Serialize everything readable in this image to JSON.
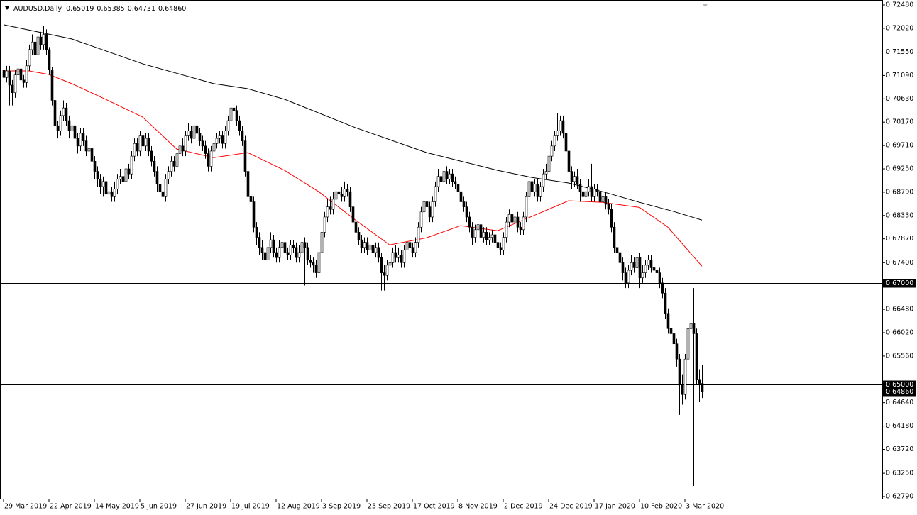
{
  "chart_data": {
    "type": "candlestick",
    "title": "AUDUSD,Daily",
    "header_ohlc": [
      "0.65019",
      "0.65385",
      "0.64731",
      "0.64860"
    ],
    "categories": [
      "29 Mar 2019",
      null,
      null,
      null,
      null,
      null,
      null,
      null,
      null,
      null,
      null,
      null,
      null,
      null,
      null,
      null,
      "22 Apr 2019",
      null,
      null,
      null,
      null,
      null,
      null,
      null,
      null,
      null,
      null,
      null,
      null,
      null,
      null,
      null,
      "14 May 2019",
      null,
      null,
      null,
      null,
      null,
      null,
      null,
      null,
      null,
      null,
      null,
      null,
      null,
      null,
      null,
      "5 Jun 2019",
      null,
      null,
      null,
      null,
      null,
      null,
      null,
      null,
      null,
      null,
      null,
      null,
      null,
      null,
      null,
      "27 Jun 2019",
      null,
      null,
      null,
      null,
      null,
      null,
      null,
      null,
      null,
      null,
      null,
      null,
      null,
      null,
      null,
      "19 Jul 2019",
      null,
      null,
      null,
      null,
      null,
      null,
      null,
      null,
      null,
      null,
      null,
      null,
      null,
      null,
      null,
      "12 Aug 2019",
      null,
      null,
      null,
      null,
      null,
      null,
      null,
      null,
      null,
      null,
      null,
      null,
      null,
      null,
      null,
      "3 Sep 2019",
      null,
      null,
      null,
      null,
      null,
      null,
      null,
      null,
      null,
      null,
      null,
      null,
      null,
      null,
      null,
      "25 Sep 2019",
      null,
      null,
      null,
      null,
      null,
      null,
      null,
      null,
      null,
      null,
      null,
      null,
      null,
      null,
      null,
      "17 Oct 2019",
      null,
      null,
      null,
      null,
      null,
      null,
      null,
      null,
      null,
      null,
      null,
      null,
      null,
      null,
      null,
      "8 Nov 2019",
      null,
      null,
      null,
      null,
      null,
      null,
      null,
      null,
      null,
      null,
      null,
      null,
      null,
      null,
      null,
      "2 Dec 2019",
      null,
      null,
      null,
      null,
      null,
      null,
      null,
      null,
      null,
      null,
      null,
      null,
      null,
      null,
      null,
      "24 Dec 2019",
      null,
      null,
      null,
      null,
      null,
      null,
      null,
      null,
      null,
      null,
      null,
      null,
      null,
      null,
      null,
      "17 Jan 2020",
      null,
      null,
      null,
      null,
      null,
      null,
      null,
      null,
      null,
      null,
      null,
      null,
      null,
      null,
      null,
      "10 Feb 2020",
      null,
      null,
      null,
      null,
      null,
      null,
      null,
      null,
      null,
      null,
      null,
      null,
      null,
      null,
      null,
      "3 Mar 2020",
      null,
      null,
      null,
      null,
      null,
      null
    ],
    "open": [
      0.712,
      0.7105,
      0.7118,
      0.709,
      0.7075,
      0.711,
      0.7122,
      0.71,
      0.7095,
      0.7128,
      0.716,
      0.7175,
      0.715,
      0.7185,
      0.717,
      0.719,
      0.716,
      0.712,
      0.706,
      0.701,
      0.7,
      0.703,
      0.7045,
      0.702,
      0.7,
      0.701,
      0.6985,
      0.697,
      0.6995,
      0.698,
      0.696,
      0.6965,
      0.694,
      0.692,
      0.6905,
      0.689,
      0.69,
      0.6875,
      0.688,
      0.687,
      0.6885,
      0.6905,
      0.691,
      0.69,
      0.6925,
      0.6915,
      0.695,
      0.6975,
      0.696,
      0.699,
      0.697,
      0.6985,
      0.696,
      0.694,
      0.692,
      0.6895,
      0.688,
      0.687,
      0.6905,
      0.692,
      0.694,
      0.693,
      0.6955,
      0.697,
      0.696,
      0.699,
      0.7,
      0.6985,
      0.701,
      0.6995,
      0.698,
      0.697,
      0.6955,
      0.693,
      0.696,
      0.6975,
      0.6985,
      0.699,
      0.6975,
      0.7,
      0.702,
      0.7045,
      0.704,
      0.702,
      0.7,
      0.698,
      0.692,
      0.687,
      0.686,
      0.681,
      0.679,
      0.677,
      0.676,
      0.6745,
      0.677,
      0.6785,
      0.676,
      0.675,
      0.677,
      0.678,
      0.676,
      0.6755,
      0.6775,
      0.677,
      0.675,
      0.676,
      0.678,
      0.677,
      0.6745,
      0.674,
      0.6735,
      0.672,
      0.676,
      0.68,
      0.683,
      0.685,
      0.6845,
      0.6865,
      0.688,
      0.6875,
      0.687,
      0.6885,
      0.688,
      0.685,
      0.682,
      0.68,
      0.6785,
      0.677,
      0.678,
      0.6765,
      0.6775,
      0.676,
      0.677,
      0.675,
      0.672,
      0.6715,
      0.6735,
      0.674,
      0.676,
      0.675,
      0.6755,
      0.674,
      0.6765,
      0.678,
      0.677,
      0.676,
      0.678,
      0.681,
      0.684,
      0.686,
      0.685,
      0.683,
      0.686,
      0.689,
      0.691,
      0.69,
      0.692,
      0.6905,
      0.6915,
      0.69,
      0.6895,
      0.688,
      0.686,
      0.685,
      0.683,
      0.681,
      0.679,
      0.6805,
      0.6815,
      0.679,
      0.68,
      0.6785,
      0.679,
      0.6795,
      0.678,
      0.677,
      0.6765,
      0.679,
      0.682,
      0.6835,
      0.682,
      0.683,
      0.681,
      0.6805,
      0.683,
      0.687,
      0.69,
      0.688,
      0.6895,
      0.687,
      0.689,
      0.6915,
      0.692,
      0.695,
      0.697,
      0.699,
      0.7,
      0.702,
      0.6995,
      0.696,
      0.692,
      0.69,
      0.691,
      0.6895,
      0.688,
      0.687,
      0.688,
      0.689,
      0.687,
      0.6885,
      0.688,
      0.686,
      0.687,
      0.6855,
      0.6845,
      0.681,
      0.677,
      0.676,
      0.674,
      0.672,
      0.67,
      0.6725,
      0.674,
      0.673,
      0.675,
      0.671,
      0.672,
      0.6735,
      0.6745,
      0.673,
      0.6725,
      0.672,
      0.67,
      0.668,
      0.664,
      0.661,
      0.66,
      0.658,
      0.655,
      0.65,
      0.648,
      0.655,
      0.661,
      0.662,
      0.66,
      0.651,
      0.65019
    ],
    "high": [
      0.713,
      0.7128,
      0.7128,
      0.71,
      0.712,
      0.7135,
      0.7132,
      0.711,
      0.714,
      0.717,
      0.719,
      0.7185,
      0.7195,
      0.7195,
      0.7207,
      0.72,
      0.7165,
      0.7125,
      0.7065,
      0.702,
      0.704,
      0.706,
      0.7055,
      0.703,
      0.7025,
      0.702,
      0.6995,
      0.7005,
      0.7005,
      0.699,
      0.6975,
      0.6975,
      0.695,
      0.693,
      0.6915,
      0.691,
      0.691,
      0.6895,
      0.689,
      0.69,
      0.6915,
      0.6925,
      0.692,
      0.6935,
      0.6935,
      0.696,
      0.6985,
      0.6985,
      0.7,
      0.7,
      0.6995,
      0.6995,
      0.697,
      0.695,
      0.693,
      0.6905,
      0.689,
      0.6915,
      0.693,
      0.695,
      0.695,
      0.6965,
      0.698,
      0.6985,
      0.7,
      0.7015,
      0.701,
      0.702,
      0.702,
      0.7005,
      0.699,
      0.698,
      0.6965,
      0.697,
      0.6985,
      0.6995,
      0.7,
      0.7,
      0.701,
      0.703,
      0.7072,
      0.7065,
      0.705,
      0.703,
      0.701,
      0.699,
      0.693,
      0.688,
      0.687,
      0.682,
      0.68,
      0.6785,
      0.677,
      0.678,
      0.68,
      0.6795,
      0.677,
      0.6785,
      0.6795,
      0.679,
      0.677,
      0.6785,
      0.6785,
      0.678,
      0.6775,
      0.679,
      0.679,
      0.678,
      0.6755,
      0.675,
      0.6745,
      0.677,
      0.681,
      0.684,
      0.6865,
      0.687,
      0.688,
      0.69,
      0.6895,
      0.689,
      0.69,
      0.6895,
      0.689,
      0.686,
      0.683,
      0.681,
      0.6795,
      0.679,
      0.679,
      0.6785,
      0.6785,
      0.678,
      0.678,
      0.676,
      0.6735,
      0.6745,
      0.6755,
      0.677,
      0.6775,
      0.677,
      0.6765,
      0.6775,
      0.6795,
      0.679,
      0.678,
      0.679,
      0.682,
      0.685,
      0.6875,
      0.687,
      0.686,
      0.687,
      0.69,
      0.6925,
      0.693,
      0.693,
      0.693,
      0.6925,
      0.6925,
      0.691,
      0.6905,
      0.689,
      0.687,
      0.686,
      0.684,
      0.682,
      0.6815,
      0.6825,
      0.6825,
      0.681,
      0.681,
      0.68,
      0.6805,
      0.6805,
      0.679,
      0.678,
      0.68,
      0.683,
      0.6845,
      0.6845,
      0.684,
      0.684,
      0.682,
      0.684,
      0.688,
      0.6915,
      0.691,
      0.6905,
      0.6905,
      0.69,
      0.6925,
      0.6935,
      0.696,
      0.698,
      0.7,
      0.7035,
      0.703,
      0.703,
      0.7,
      0.6965,
      0.693,
      0.692,
      0.6925,
      0.6905,
      0.689,
      0.689,
      0.6905,
      0.6935,
      0.6895,
      0.6895,
      0.689,
      0.688,
      0.688,
      0.6865,
      0.6855,
      0.682,
      0.6785,
      0.677,
      0.675,
      0.673,
      0.6735,
      0.6755,
      0.675,
      0.676,
      0.676,
      0.6735,
      0.6745,
      0.6755,
      0.6755,
      0.674,
      0.6735,
      0.673,
      0.671,
      0.669,
      0.665,
      0.6625,
      0.661,
      0.659,
      0.656,
      0.652,
      0.656,
      0.662,
      0.665,
      0.669,
      0.661,
      0.653,
      0.65385
    ],
    "low": [
      0.7095,
      0.7095,
      0.705,
      0.705,
      0.7065,
      0.71,
      0.709,
      0.7085,
      0.7085,
      0.7118,
      0.715,
      0.714,
      0.714,
      0.716,
      0.716,
      0.715,
      0.711,
      0.705,
      0.699,
      0.6985,
      0.699,
      0.702,
      0.701,
      0.6985,
      0.699,
      0.697,
      0.6955,
      0.696,
      0.697,
      0.695,
      0.6945,
      0.693,
      0.6905,
      0.689,
      0.6875,
      0.687,
      0.6865,
      0.6865,
      0.686,
      0.686,
      0.6875,
      0.6895,
      0.689,
      0.689,
      0.6905,
      0.6905,
      0.694,
      0.695,
      0.695,
      0.696,
      0.696,
      0.695,
      0.693,
      0.691,
      0.688,
      0.6865,
      0.684,
      0.686,
      0.6895,
      0.691,
      0.692,
      0.692,
      0.6945,
      0.695,
      0.695,
      0.698,
      0.6975,
      0.6975,
      0.6985,
      0.697,
      0.696,
      0.6945,
      0.692,
      0.692,
      0.695,
      0.6965,
      0.6975,
      0.6965,
      0.6965,
      0.699,
      0.701,
      0.703,
      0.701,
      0.699,
      0.697,
      0.691,
      0.686,
      0.685,
      0.68,
      0.6775,
      0.6755,
      0.6745,
      0.6735,
      0.669,
      0.676,
      0.675,
      0.674,
      0.674,
      0.676,
      0.675,
      0.6745,
      0.6745,
      0.676,
      0.674,
      0.674,
      0.675,
      0.6695,
      0.6735,
      0.673,
      0.672,
      0.671,
      0.669,
      0.675,
      0.679,
      0.682,
      0.6835,
      0.6835,
      0.6855,
      0.6865,
      0.686,
      0.686,
      0.687,
      0.684,
      0.681,
      0.6785,
      0.6775,
      0.676,
      0.676,
      0.6755,
      0.6755,
      0.6745,
      0.675,
      0.674,
      0.6685,
      0.6685,
      0.6705,
      0.6725,
      0.673,
      0.674,
      0.674,
      0.673,
      0.673,
      0.6755,
      0.676,
      0.675,
      0.675,
      0.677,
      0.68,
      0.683,
      0.684,
      0.682,
      0.682,
      0.685,
      0.688,
      0.689,
      0.689,
      0.6895,
      0.6895,
      0.689,
      0.6885,
      0.687,
      0.685,
      0.684,
      0.682,
      0.68,
      0.6775,
      0.678,
      0.6795,
      0.678,
      0.678,
      0.6775,
      0.6775,
      0.678,
      0.677,
      0.676,
      0.6755,
      0.6755,
      0.678,
      0.681,
      0.681,
      0.681,
      0.68,
      0.6795,
      0.6795,
      0.682,
      0.686,
      0.687,
      0.687,
      0.686,
      0.686,
      0.688,
      0.6905,
      0.691,
      0.694,
      0.696,
      0.698,
      0.699,
      0.6985,
      0.695,
      0.691,
      0.6885,
      0.689,
      0.6885,
      0.686,
      0.6855,
      0.686,
      0.687,
      0.686,
      0.686,
      0.687,
      0.685,
      0.685,
      0.6845,
      0.6835,
      0.68,
      0.676,
      0.6745,
      0.673,
      0.6705,
      0.669,
      0.669,
      0.6715,
      0.672,
      0.672,
      0.669,
      0.67,
      0.671,
      0.6725,
      0.672,
      0.6715,
      0.671,
      0.669,
      0.667,
      0.663,
      0.66,
      0.6585,
      0.6565,
      0.6535,
      0.644,
      0.646,
      0.647,
      0.654,
      0.6595,
      0.63,
      0.65,
      0.6465,
      0.64731
    ],
    "close": [
      0.7105,
      0.7118,
      0.709,
      0.7075,
      0.711,
      0.7122,
      0.71,
      0.7095,
      0.7128,
      0.716,
      0.7175,
      0.715,
      0.7185,
      0.717,
      0.719,
      0.716,
      0.712,
      0.706,
      0.701,
      0.7,
      0.703,
      0.7045,
      0.702,
      0.7,
      0.701,
      0.6985,
      0.697,
      0.6995,
      0.698,
      0.696,
      0.6965,
      0.694,
      0.692,
      0.6905,
      0.689,
      0.69,
      0.6875,
      0.688,
      0.687,
      0.6885,
      0.6905,
      0.691,
      0.69,
      0.6925,
      0.6915,
      0.695,
      0.6975,
      0.696,
      0.699,
      0.697,
      0.6985,
      0.696,
      0.694,
      0.692,
      0.6895,
      0.688,
      0.687,
      0.6905,
      0.692,
      0.694,
      0.693,
      0.6955,
      0.697,
      0.696,
      0.699,
      0.7,
      0.6985,
      0.701,
      0.6995,
      0.698,
      0.697,
      0.6955,
      0.693,
      0.696,
      0.6975,
      0.6985,
      0.699,
      0.6975,
      0.7,
      0.702,
      0.7045,
      0.704,
      0.702,
      0.7,
      0.698,
      0.692,
      0.687,
      0.686,
      0.681,
      0.679,
      0.677,
      0.676,
      0.6745,
      0.677,
      0.6785,
      0.676,
      0.675,
      0.677,
      0.678,
      0.676,
      0.6755,
      0.6775,
      0.677,
      0.675,
      0.676,
      0.678,
      0.677,
      0.6745,
      0.674,
      0.6735,
      0.672,
      0.676,
      0.68,
      0.683,
      0.685,
      0.6845,
      0.6865,
      0.688,
      0.6875,
      0.687,
      0.6885,
      0.688,
      0.685,
      0.682,
      0.68,
      0.6785,
      0.677,
      0.678,
      0.6765,
      0.6775,
      0.676,
      0.677,
      0.675,
      0.672,
      0.6715,
      0.6735,
      0.674,
      0.676,
      0.675,
      0.6755,
      0.674,
      0.6765,
      0.678,
      0.677,
      0.676,
      0.678,
      0.681,
      0.684,
      0.686,
      0.685,
      0.683,
      0.686,
      0.689,
      0.691,
      0.69,
      0.692,
      0.6905,
      0.6915,
      0.69,
      0.6895,
      0.688,
      0.686,
      0.685,
      0.683,
      0.681,
      0.679,
      0.6805,
      0.6815,
      0.679,
      0.68,
      0.6785,
      0.679,
      0.6795,
      0.678,
      0.677,
      0.6765,
      0.679,
      0.682,
      0.6835,
      0.682,
      0.683,
      0.681,
      0.6805,
      0.683,
      0.687,
      0.69,
      0.688,
      0.6895,
      0.687,
      0.689,
      0.6915,
      0.692,
      0.695,
      0.697,
      0.699,
      0.7,
      0.702,
      0.6995,
      0.696,
      0.692,
      0.69,
      0.691,
      0.6895,
      0.688,
      0.687,
      0.688,
      0.689,
      0.687,
      0.6885,
      0.688,
      0.686,
      0.687,
      0.6855,
      0.6845,
      0.681,
      0.677,
      0.676,
      0.674,
      0.672,
      0.67,
      0.6725,
      0.674,
      0.673,
      0.675,
      0.671,
      0.672,
      0.6735,
      0.6745,
      0.673,
      0.6725,
      0.672,
      0.67,
      0.668,
      0.664,
      0.661,
      0.66,
      0.658,
      0.655,
      0.65,
      0.648,
      0.655,
      0.661,
      0.662,
      0.66,
      0.651,
      0.65019,
      0.6486
    ],
    "up_color": "#ffffff",
    "down_color": "#000000",
    "outline_color": "#000000",
    "series": [
      {
        "color": "#000000",
        "x": [
          0,
          24,
          49,
          74,
          86,
          99,
          124,
          149,
          174,
          186,
          199,
          211,
          224,
          236,
          246
        ],
        "values": [
          0.7209,
          0.7181,
          0.7132,
          0.7093,
          0.7083,
          0.7062,
          0.7006,
          0.6957,
          0.6922,
          0.6908,
          0.6897,
          0.688,
          0.6859,
          0.6841,
          0.6824
        ]
      },
      {
        "color": "#ff0000",
        "x": [
          0,
          9,
          16,
          24,
          36,
          49,
          61,
          74,
          86,
          99,
          111,
          124,
          136,
          149,
          161,
          174,
          186,
          199,
          211,
          224,
          234,
          246
        ],
        "values": [
          0.7118,
          0.7118,
          0.7111,
          0.7093,
          0.7062,
          0.7027,
          0.6964,
          0.6947,
          0.6957,
          0.6922,
          0.688,
          0.6824,
          0.6775,
          0.6789,
          0.6813,
          0.6803,
          0.6831,
          0.6862,
          0.6859,
          0.6849,
          0.681,
          0.6733
        ]
      }
    ],
    "levels": [
      {
        "value": 0.67,
        "label": "0.67000",
        "color": "#000000"
      },
      {
        "value": 0.65,
        "label": "0.65000",
        "color": "#000000"
      },
      {
        "value": 0.6486,
        "label": "0.64860",
        "color": "#c0c0c0"
      }
    ],
    "ylim": [
      0.6279,
      0.7248
    ],
    "yticks": [
      {
        "value": 0.7248,
        "label": "0.72480"
      },
      {
        "value": 0.7202,
        "label": "0.72020"
      },
      {
        "value": 0.7155,
        "label": "0.71550"
      },
      {
        "value": 0.7109,
        "label": "0.71090"
      },
      {
        "value": 0.7063,
        "label": "0.70630"
      },
      {
        "value": 0.7017,
        "label": "0.70170"
      },
      {
        "value": 0.6971,
        "label": "0.69710"
      },
      {
        "value": 0.6925,
        "label": "0.69250"
      },
      {
        "value": 0.6879,
        "label": "0.68790"
      },
      {
        "value": 0.6833,
        "label": "0.68330"
      },
      {
        "value": 0.6787,
        "label": "0.67870"
      },
      {
        "value": 0.674,
        "label": "0.67400"
      },
      {
        "value": 0.6648,
        "label": "0.66480"
      },
      {
        "value": 0.6602,
        "label": "0.66020"
      },
      {
        "value": 0.6556,
        "label": "0.65560"
      },
      {
        "value": 0.6464,
        "label": "0.64640"
      },
      {
        "value": 0.6418,
        "label": "0.64180"
      },
      {
        "value": 0.6372,
        "label": "0.63720"
      },
      {
        "value": 0.6325,
        "label": "0.63250"
      },
      {
        "value": 0.6279,
        "label": "0.62790"
      }
    ]
  }
}
